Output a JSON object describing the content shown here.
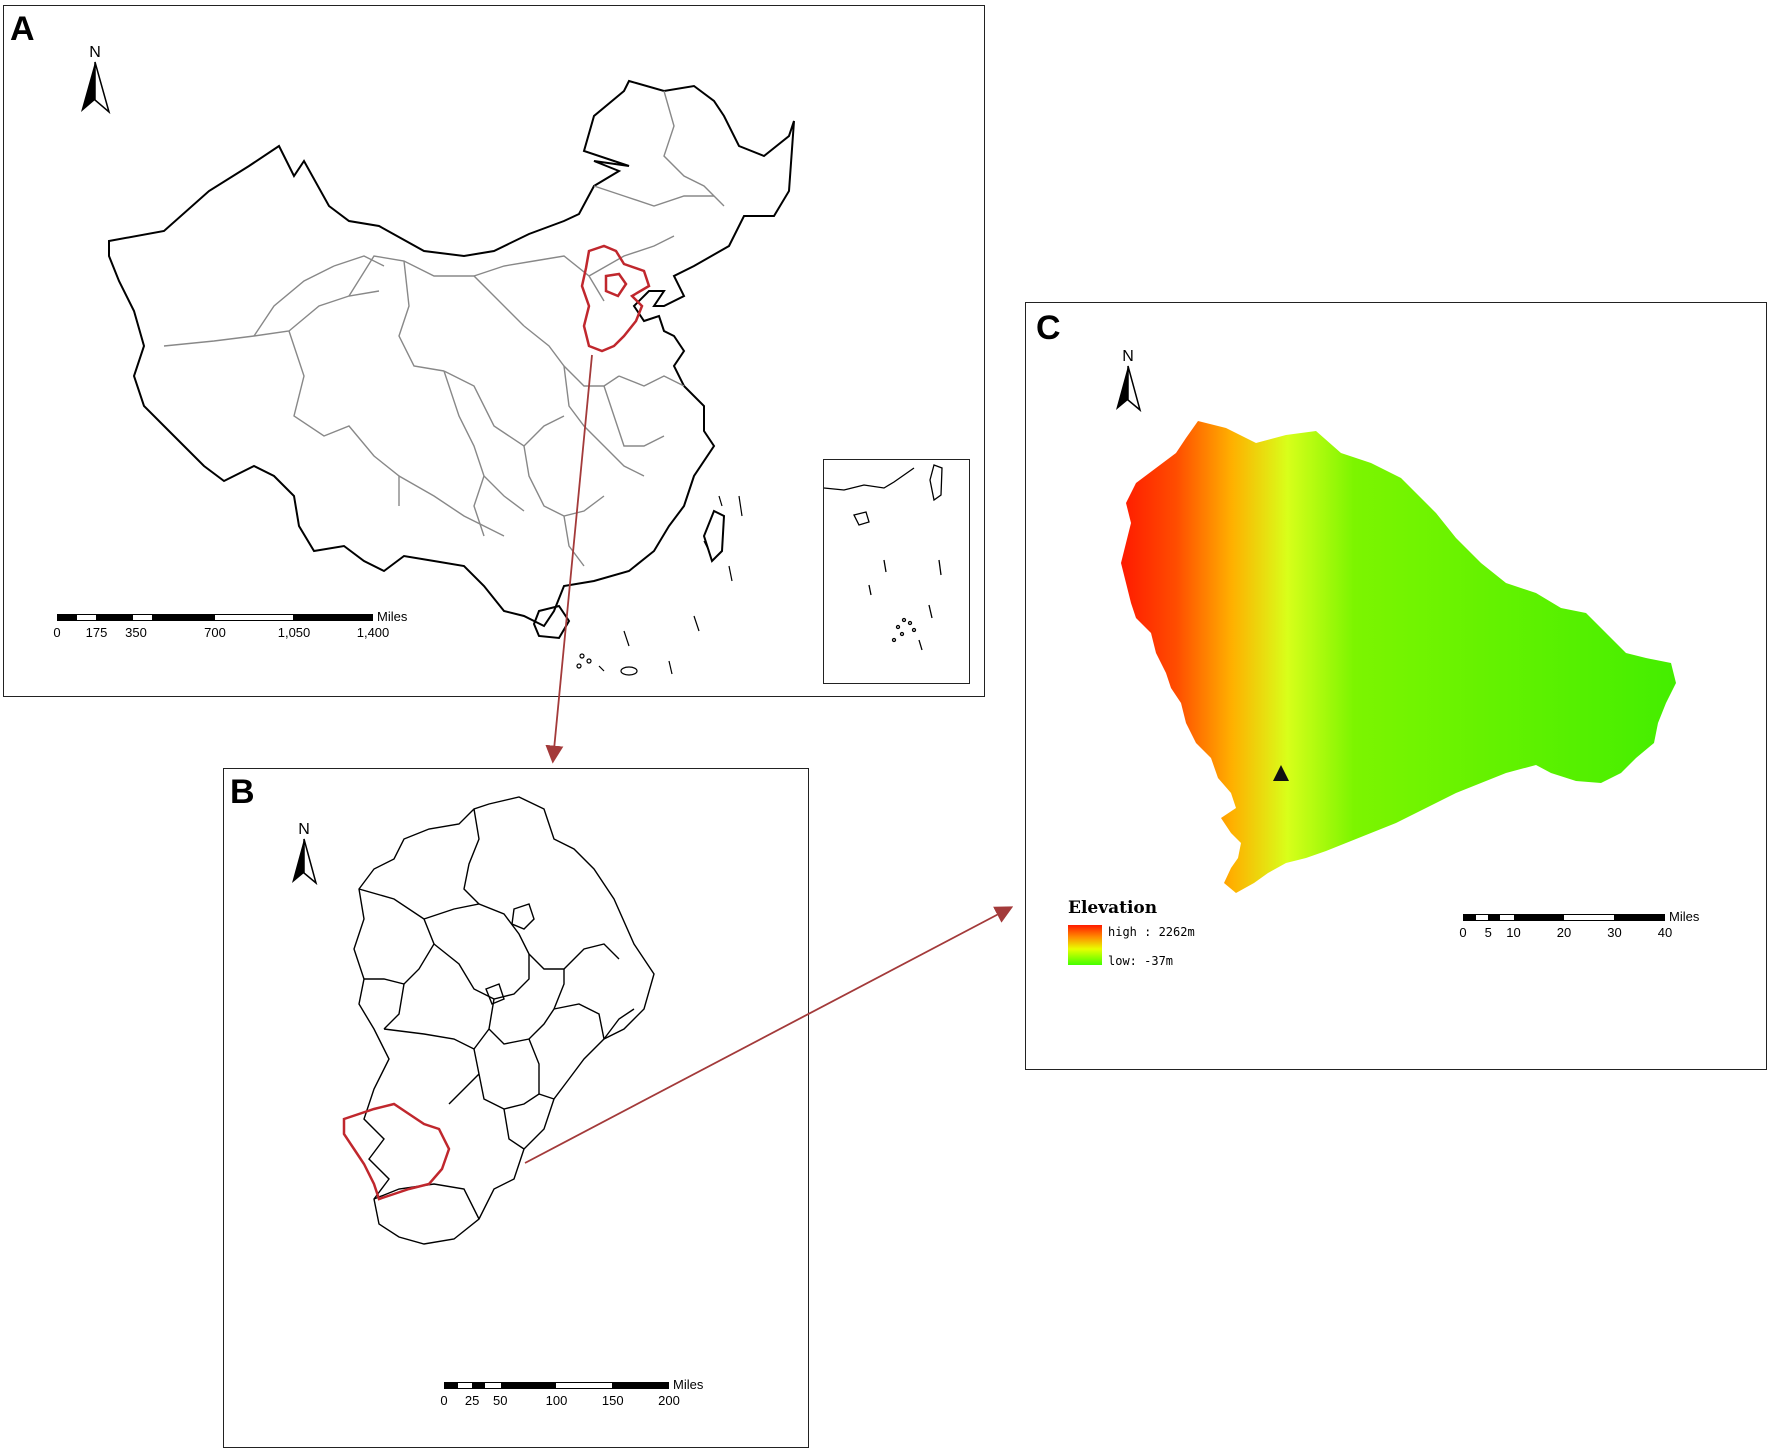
{
  "panels": {
    "a": {
      "label": "A",
      "north_letter": "N",
      "scale": {
        "ticks": [
          "0",
          "175",
          "350",
          "700",
          "1,050",
          "1,400"
        ],
        "units": "Miles"
      }
    },
    "b": {
      "label": "B",
      "north_letter": "N",
      "scale": {
        "ticks": [
          "0",
          "25",
          "50",
          "100",
          "150",
          "200"
        ],
        "units": "Miles"
      }
    },
    "c": {
      "label": "C",
      "north_letter": "N",
      "scale": {
        "ticks": [
          "0",
          "5",
          "10",
          "20",
          "30",
          "40"
        ],
        "units": "Miles"
      },
      "legend": {
        "title": "Elevation",
        "high": "high : 2262m",
        "low": "low: -37m"
      }
    }
  },
  "colors": {
    "highlight": "#c0272d",
    "arrow": "#a33a3a",
    "elevation_high": "#ff1a00",
    "elevation_mid": "#ffcc00",
    "elevation_low": "#44ee00"
  },
  "icons": [
    "north-arrow-icon",
    "arrow-connector-icon",
    "peak-marker-icon"
  ]
}
